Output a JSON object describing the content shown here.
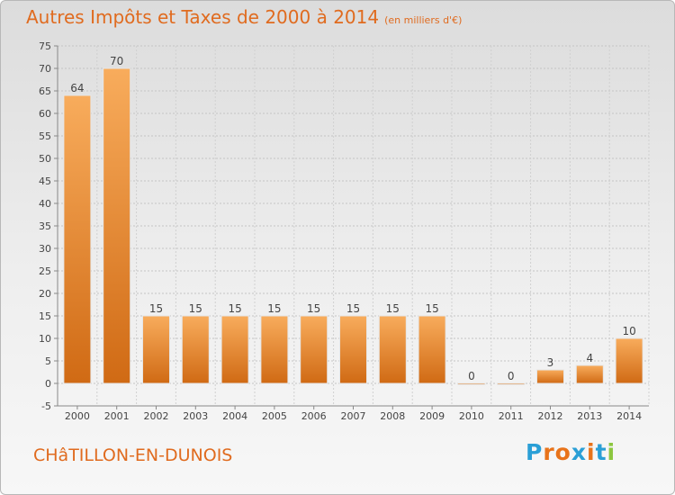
{
  "title": "Autres Impôts et Taxes de 2000 à 2014",
  "subtitle": "(en milliers d'€)",
  "commune": "CHâTILLON-EN-DUNOIS",
  "logo_text": "Proxiti",
  "logo_colors": [
    "#2a9fd6",
    "#e8731a",
    "#e8731a",
    "#2a9fd6",
    "#e8731a",
    "#2a9fd6",
    "#8cc63f"
  ],
  "chart_data": {
    "type": "bar",
    "title": "Autres Impôts et Taxes de 2000 à 2014",
    "subtitle": "(en milliers d'€)",
    "xlabel": "",
    "ylabel": "",
    "categories": [
      "2000",
      "2001",
      "2002",
      "2003",
      "2004",
      "2005",
      "2006",
      "2007",
      "2008",
      "2009",
      "2010",
      "2011",
      "2012",
      "2013",
      "2014"
    ],
    "values": [
      64,
      70,
      15,
      15,
      15,
      15,
      15,
      15,
      15,
      15,
      0,
      0,
      3,
      4,
      10
    ],
    "ylim": [
      -5,
      75
    ],
    "yticks": [
      -5,
      0,
      5,
      10,
      15,
      20,
      25,
      30,
      35,
      40,
      45,
      50,
      55,
      60,
      65,
      70,
      75
    ],
    "grid": "horizontal dotted",
    "bar_color": "#f08a2c",
    "title_color": "#e06b1f"
  }
}
